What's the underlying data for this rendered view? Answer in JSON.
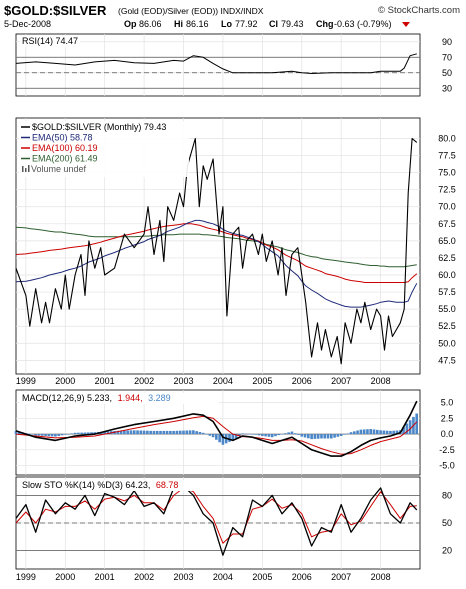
{
  "header": {
    "symbol": "$GOLD:$SILVER",
    "description": "(Gold (EOD)/Silver (EOD)) INDX/INDX",
    "brand": "© StockCharts.com",
    "date": "5-Dec-2008",
    "op_label": "Op",
    "op": "86.06",
    "hi_label": "Hi",
    "hi": "86.16",
    "lo_label": "Lo",
    "lo": "77.92",
    "cl_label": "Cl",
    "cl": "79.43",
    "chg_label": "Chg",
    "chg": "-0.63 (-0.79%)",
    "chg_color": "#cc0000"
  },
  "rsi": {
    "label": "RSI(14) 74.47",
    "ticks": [
      "90",
      "70",
      "50",
      "30"
    ],
    "tick_values": [
      90,
      70,
      50,
      30
    ],
    "ylim": [
      20,
      100
    ],
    "levels": [
      70,
      50,
      30
    ]
  },
  "price": {
    "legend": [
      {
        "text": "$GOLD:$SILVER (Monthly) 79.43",
        "color": "#000000"
      },
      {
        "text": "EMA(50) 58.78",
        "color": "#1f2a7a"
      },
      {
        "text": "EMA(100) 60.19",
        "color": "#cc0000"
      },
      {
        "text": "EMA(200) 61.49",
        "color": "#2f5f2f"
      },
      {
        "text": "Volume undef",
        "color": "#555555"
      }
    ],
    "ticks": [
      "80.0",
      "77.5",
      "75.0",
      "72.5",
      "70.0",
      "67.5",
      "65.0",
      "62.5",
      "60.0",
      "57.5",
      "55.0",
      "52.5",
      "50.0",
      "47.5"
    ],
    "tick_values": [
      80,
      77.5,
      75,
      72.5,
      70,
      67.5,
      65,
      62.5,
      60,
      57.5,
      55,
      52.5,
      50,
      47.5
    ],
    "ylim": [
      45.5,
      83
    ]
  },
  "years": [
    "1999",
    "2000",
    "2001",
    "2002",
    "2003",
    "2004",
    "2005",
    "2006",
    "2007",
    "2008"
  ],
  "macd": {
    "label_main": "MACD(12,26,9) 5.233,",
    "label_signal": "1.944,",
    "label_hist": "3.289",
    "signal_color": "#cc0000",
    "hist_color": "#4a86c8",
    "ticks": [
      "5.0",
      "2.5",
      "0.0",
      "-2.5",
      "-5.0"
    ],
    "tick_values": [
      5,
      2.5,
      0,
      -2.5,
      -5
    ],
    "ylim": [
      -6.5,
      7
    ]
  },
  "sto": {
    "label_main": "Slow STO %K(14) %D(3) 64.23,",
    "label_d": "68.78",
    "d_color": "#cc0000",
    "ticks": [
      "80",
      "50",
      "20"
    ],
    "tick_values": [
      80,
      50,
      20
    ],
    "ylim": [
      0,
      100
    ],
    "levels": [
      80,
      50,
      20
    ]
  },
  "chart_data": [
    {
      "type": "line",
      "title": "RSI(14) 74.47",
      "x": [
        1998.75,
        1999.25,
        1999.75,
        2000.25,
        2000.75,
        2001.25,
        2001.75,
        2002.25,
        2002.75,
        2003.0,
        2003.25,
        2003.5,
        2003.75,
        2004.0,
        2004.25,
        2004.75,
        2005.25,
        2005.75,
        2006.0,
        2006.25,
        2006.75,
        2007.25,
        2007.75,
        2008.0,
        2008.25,
        2008.5,
        2008.6,
        2008.75,
        2008.92
      ],
      "series": [
        {
          "values": [
            62,
            64,
            62,
            60,
            64,
            66,
            63,
            62,
            66,
            65,
            72,
            70,
            62,
            55,
            50,
            50,
            50,
            52,
            50,
            49,
            50,
            50,
            50,
            52,
            52,
            52,
            56,
            72,
            74.47
          ]
        }
      ],
      "ylim": [
        20,
        100
      ]
    },
    {
      "type": "line",
      "title": "$GOLD:$SILVER (Monthly) 79.43",
      "x": [
        1998.75,
        1999.0,
        1999.1,
        1999.25,
        1999.4,
        1999.5,
        1999.6,
        1999.75,
        1999.9,
        2000.0,
        2000.1,
        2000.25,
        2000.4,
        2000.5,
        2000.6,
        2000.75,
        2000.9,
        2001.0,
        2001.25,
        2001.5,
        2001.75,
        2002.0,
        2002.1,
        2002.25,
        2002.4,
        2002.5,
        2002.6,
        2002.75,
        2002.9,
        2003.0,
        2003.1,
        2003.2,
        2003.3,
        2003.4,
        2003.5,
        2003.6,
        2003.75,
        2003.9,
        2004.0,
        2004.1,
        2004.25,
        2004.4,
        2004.5,
        2004.6,
        2004.75,
        2004.9,
        2005.0,
        2005.1,
        2005.25,
        2005.4,
        2005.5,
        2005.6,
        2005.75,
        2005.9,
        2006.0,
        2006.1,
        2006.25,
        2006.4,
        2006.5,
        2006.6,
        2006.75,
        2006.9,
        2007.0,
        2007.1,
        2007.25,
        2007.4,
        2007.5,
        2007.6,
        2007.75,
        2007.9,
        2008.0,
        2008.1,
        2008.2,
        2008.3,
        2008.4,
        2008.5,
        2008.6,
        2008.7,
        2008.8,
        2008.92
      ],
      "series": [
        {
          "name": "$GOLD:$SILVER (Monthly) 79.43",
          "values": [
            61,
            57,
            52.5,
            58,
            53,
            56,
            53,
            58,
            55,
            60,
            55,
            60,
            63,
            57,
            65,
            61,
            64,
            60,
            61,
            66,
            64,
            66,
            70,
            63,
            68,
            62,
            70,
            68,
            72,
            70,
            76,
            78,
            80,
            70,
            76,
            74,
            77,
            66,
            70,
            54,
            66,
            67,
            61,
            65,
            66,
            63,
            66,
            62,
            65,
            60,
            64,
            57,
            63,
            64,
            60,
            56,
            48,
            53,
            49,
            52,
            48,
            51,
            47,
            53,
            50,
            55,
            53,
            56,
            52,
            55,
            54,
            49,
            54,
            51,
            52,
            53,
            55,
            72,
            80,
            79.43
          ]
        },
        {
          "name": "EMA(50) 58.78",
          "values": [
            59,
            59.1,
            59.2,
            59.4,
            59.6,
            59.8,
            60,
            60.2,
            60.4,
            60.6,
            60.8,
            61,
            61.3,
            61.6,
            61.9,
            62.2,
            62.5,
            62.8,
            63.3,
            63.9,
            64.4,
            64.9,
            65.2,
            65.5,
            65.8,
            66.1,
            66.4,
            66.7,
            67,
            67.3,
            67.6,
            67.8,
            68,
            68,
            67.9,
            67.7,
            67.5,
            67.1,
            66.7,
            66.4,
            66.1,
            65.9,
            65.8,
            65.6,
            65.3,
            64.9,
            64.5,
            64,
            63.4,
            62.8,
            62.1,
            61.4,
            60.6,
            59.9,
            59.1,
            58.4,
            57.8,
            57.3,
            56.9,
            56.5,
            56.1,
            55.8,
            55.6,
            55.4,
            55.3,
            55.3,
            55.3,
            55.4,
            55.6,
            55.8,
            56,
            56.1,
            56.2,
            56.1,
            56,
            56,
            56,
            56.2,
            57.5,
            58.78
          ]
        },
        {
          "name": "EMA(100) 60.19",
          "values": [
            63,
            63.1,
            63.2,
            63.3,
            63.4,
            63.5,
            63.6,
            63.7,
            63.8,
            63.9,
            64,
            64.1,
            64.2,
            64.3,
            64.4,
            64.6,
            64.8,
            65,
            65.4,
            65.8,
            66.1,
            66.4,
            66.6,
            66.8,
            67,
            67.1,
            67.2,
            67.3,
            67.4,
            67.5,
            67.5,
            67.5,
            67.4,
            67.3,
            67.1,
            66.9,
            66.7,
            66.5,
            66.3,
            66.1,
            65.9,
            65.7,
            65.6,
            65.4,
            65.2,
            65,
            64.7,
            64.4,
            64.1,
            63.7,
            63.3,
            62.9,
            62.5,
            62.1,
            61.7,
            61.3,
            61,
            60.7,
            60.5,
            60.2,
            60,
            59.8,
            59.6,
            59.4,
            59.2,
            59.1,
            59,
            58.9,
            58.9,
            58.9,
            58.9,
            58.9,
            58.9,
            58.9,
            58.9,
            58.9,
            58.9,
            59,
            59.6,
            60.19
          ]
        },
        {
          "name": "EMA(200) 61.49",
          "values": [
            67,
            66.9,
            66.8,
            66.7,
            66.6,
            66.5,
            66.4,
            66.3,
            66.3,
            66.2,
            66.1,
            66,
            65.9,
            65.8,
            65.7,
            65.6,
            65.6,
            65.6,
            65.6,
            65.6,
            65.6,
            65.7,
            65.7,
            65.8,
            65.8,
            65.9,
            65.9,
            65.9,
            66,
            66,
            66,
            66,
            66,
            66,
            65.9,
            65.9,
            65.8,
            65.7,
            65.6,
            65.5,
            65.4,
            65.3,
            65.2,
            65.1,
            65,
            64.9,
            64.7,
            64.5,
            64.3,
            64.1,
            63.9,
            63.7,
            63.5,
            63.3,
            63.1,
            62.9,
            62.7,
            62.6,
            62.4,
            62.3,
            62.2,
            62.1,
            62,
            61.9,
            61.8,
            61.7,
            61.6,
            61.5,
            61.4,
            61.4,
            61.3,
            61.3,
            61.2,
            61.2,
            61.2,
            61.2,
            61.2,
            61.3,
            61.4,
            61.49
          ]
        }
      ],
      "ylim": [
        45.5,
        83
      ]
    },
    {
      "type": "line",
      "title": "MACD(12,26,9) 5.233, 1.944, 3.289",
      "x": [
        1998.75,
        1999.25,
        1999.75,
        2000.25,
        2000.75,
        2001.25,
        2001.75,
        2002.25,
        2002.75,
        2003.25,
        2003.5,
        2003.75,
        2004.0,
        2004.25,
        2004.5,
        2004.75,
        2005.0,
        2005.25,
        2005.5,
        2005.75,
        2006.0,
        2006.25,
        2006.5,
        2006.75,
        2007.0,
        2007.25,
        2007.5,
        2007.75,
        2008.0,
        2008.25,
        2008.5,
        2008.75,
        2008.92
      ],
      "series": [
        {
          "name": "MACD",
          "values": [
            0.5,
            -0.5,
            -1,
            -0.3,
            0,
            0.8,
            1.5,
            2,
            2.5,
            3.2,
            3,
            2,
            -0.5,
            -1,
            -0.3,
            -0.5,
            -1,
            -1.5,
            -1,
            -0.5,
            -1.5,
            -2.5,
            -3,
            -3.5,
            -3.5,
            -2.8,
            -1.8,
            -1,
            -0.6,
            -0.3,
            0.2,
            3,
            5.233
          ]
        },
        {
          "name": "Signal",
          "values": [
            0,
            -0.3,
            -0.6,
            -0.5,
            -0.3,
            0.3,
            0.9,
            1.5,
            2,
            2.6,
            2.8,
            2.5,
            1.2,
            0,
            -0.4,
            -0.5,
            -0.7,
            -1,
            -1,
            -0.9,
            -1.1,
            -1.7,
            -2.3,
            -2.8,
            -3.2,
            -3.1,
            -2.5,
            -1.8,
            -1.2,
            -0.8,
            -0.4,
            0.8,
            1.944
          ]
        }
      ],
      "ylim": [
        -6.5,
        7
      ]
    },
    {
      "type": "line",
      "title": "Slow STO %K(14) %D(3) 64.23, 68.78",
      "x": [
        1998.75,
        1999.0,
        1999.25,
        1999.5,
        1999.75,
        2000.0,
        2000.25,
        2000.5,
        2000.75,
        2001.0,
        2001.25,
        2001.5,
        2001.75,
        2002.0,
        2002.25,
        2002.5,
        2002.75,
        2003.0,
        2003.25,
        2003.5,
        2003.75,
        2004.0,
        2004.25,
        2004.5,
        2004.75,
        2005.0,
        2005.25,
        2005.5,
        2005.75,
        2006.0,
        2006.25,
        2006.5,
        2006.75,
        2007.0,
        2007.25,
        2007.5,
        2007.75,
        2008.0,
        2008.25,
        2008.5,
        2008.75,
        2008.92
      ],
      "series": [
        {
          "name": "%K",
          "values": [
            55,
            70,
            40,
            75,
            60,
            72,
            65,
            80,
            58,
            82,
            78,
            70,
            85,
            68,
            72,
            60,
            88,
            90,
            80,
            60,
            50,
            15,
            45,
            35,
            75,
            68,
            80,
            60,
            72,
            55,
            25,
            45,
            40,
            70,
            40,
            55,
            75,
            88,
            60,
            50,
            72,
            64.23
          ]
        },
        {
          "name": "%D",
          "values": [
            50,
            62,
            50,
            65,
            62,
            68,
            68,
            74,
            65,
            76,
            78,
            74,
            80,
            72,
            72,
            64,
            80,
            88,
            84,
            68,
            55,
            28,
            38,
            38,
            65,
            68,
            76,
            66,
            70,
            60,
            35,
            40,
            42,
            60,
            48,
            52,
            68,
            84,
            70,
            55,
            68,
            68.78
          ]
        }
      ],
      "ylim": [
        0,
        100
      ]
    }
  ]
}
